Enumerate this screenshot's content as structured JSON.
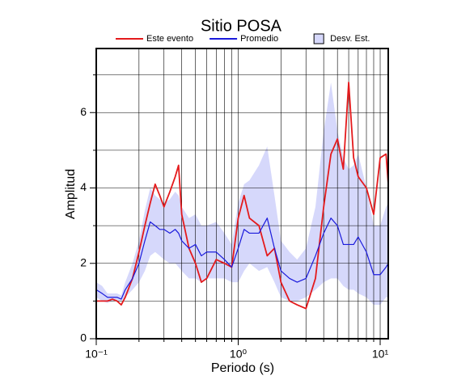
{
  "chart_data": {
    "type": "line",
    "log_x": true,
    "title": "Sitio POSA",
    "xlabel": "Periodo (s)",
    "ylabel": "Amplitud",
    "legend": "top",
    "grid": true,
    "xlim": [
      0.1,
      11.4
    ],
    "ylim": [
      0,
      7.7
    ],
    "xticks": [
      {
        "value": 0.1,
        "label": "10⁻¹"
      },
      {
        "value": 1,
        "label": "10⁰"
      },
      {
        "value": 10,
        "label": "10¹"
      }
    ],
    "xminor": [
      0.2,
      0.3,
      0.4,
      0.5,
      0.6,
      0.7,
      0.8,
      0.9,
      2,
      3,
      4,
      5,
      6,
      7,
      8,
      9
    ],
    "yticks": [
      0,
      2,
      4,
      6
    ],
    "yminor": [
      1,
      3,
      5,
      7
    ],
    "x": [
      0.1,
      0.11,
      0.12,
      0.13,
      0.14,
      0.15,
      0.16,
      0.18,
      0.2,
      0.22,
      0.24,
      0.26,
      0.28,
      0.3,
      0.33,
      0.36,
      0.38,
      0.4,
      0.45,
      0.5,
      0.55,
      0.6,
      0.7,
      0.8,
      0.9,
      1.0,
      1.1,
      1.2,
      1.4,
      1.6,
      1.8,
      2.0,
      2.3,
      2.6,
      3.0,
      3.5,
      4.0,
      4.5,
      5.0,
      5.5,
      6.0,
      6.5,
      7.0,
      8.0,
      9.0,
      10.0,
      11.0,
      11.4
    ],
    "band": {
      "name": "Desv. Est.",
      "color": "#d6d8fb",
      "upper": [
        1.5,
        1.4,
        1.2,
        1.2,
        1.2,
        1.15,
        1.5,
        2.0,
        2.6,
        3.4,
        4.0,
        3.8,
        3.7,
        3.6,
        3.7,
        3.9,
        3.8,
        3.5,
        3.2,
        3.3,
        3.0,
        3.0,
        3.1,
        2.8,
        2.5,
        3.6,
        4.1,
        4.2,
        4.6,
        5.1,
        3.8,
        2.6,
        2.3,
        2.1,
        2.4,
        3.5,
        5.5,
        6.8,
        5.5,
        4.8,
        4.5,
        4.6,
        4.9,
        4.0,
        3.0,
        3.0,
        3.5,
        3.6
      ],
      "lower": [
        1.1,
        1.0,
        0.95,
        1.0,
        1.0,
        1.0,
        1.1,
        1.3,
        1.5,
        1.8,
        2.2,
        2.3,
        2.2,
        2.1,
        2.0,
        2.0,
        1.9,
        1.8,
        1.6,
        1.6,
        1.5,
        1.6,
        1.6,
        1.6,
        1.5,
        1.5,
        1.8,
        2.0,
        1.8,
        1.9,
        1.5,
        1.1,
        1.0,
        1.0,
        1.1,
        1.3,
        1.5,
        1.6,
        1.6,
        1.4,
        1.3,
        1.3,
        1.2,
        1.1,
        0.9,
        0.9,
        1.1,
        1.1
      ]
    },
    "series": [
      {
        "name": "Este evento",
        "color": "#e41a1c",
        "values": [
          1.0,
          1.0,
          1.0,
          1.05,
          1.0,
          0.9,
          1.1,
          1.6,
          2.3,
          3.0,
          3.6,
          4.1,
          3.8,
          3.5,
          3.9,
          4.3,
          4.6,
          3.3,
          2.4,
          2.0,
          1.5,
          1.6,
          2.1,
          2.0,
          1.9,
          3.2,
          3.8,
          3.2,
          3.0,
          2.2,
          2.4,
          1.5,
          1.0,
          0.9,
          0.8,
          1.6,
          3.5,
          4.9,
          5.3,
          4.5,
          6.8,
          4.8,
          4.3,
          4.0,
          3.3,
          4.8,
          4.9,
          4.1
        ]
      },
      {
        "name": "Promedio",
        "color": "#1a1adc",
        "values": [
          1.3,
          1.2,
          1.1,
          1.1,
          1.1,
          1.05,
          1.3,
          1.6,
          2.0,
          2.6,
          3.1,
          3.0,
          2.9,
          2.9,
          2.8,
          2.9,
          2.8,
          2.6,
          2.4,
          2.5,
          2.2,
          2.3,
          2.3,
          2.1,
          1.9,
          2.4,
          2.9,
          2.8,
          2.8,
          3.2,
          2.4,
          1.8,
          1.6,
          1.5,
          1.6,
          2.2,
          2.8,
          3.2,
          3.0,
          2.5,
          2.5,
          2.5,
          2.7,
          2.3,
          1.7,
          1.7,
          1.9,
          2.0
        ]
      }
    ]
  }
}
